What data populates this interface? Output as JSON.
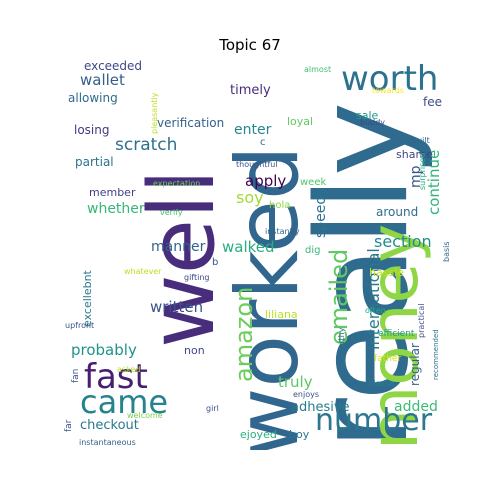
{
  "title": "Topic 67",
  "words": [
    {
      "text": "really",
      "color": "#2f6b8e"
    },
    {
      "text": "worked",
      "color": "#31668e"
    },
    {
      "text": "well",
      "color": "#472d7b"
    },
    {
      "text": "money",
      "color": "#8ed645"
    },
    {
      "text": "number",
      "color": "#2a778e"
    },
    {
      "text": "worth",
      "color": "#2c718e"
    },
    {
      "text": "fast",
      "color": "#481f70"
    },
    {
      "text": "came",
      "color": "#26828e"
    },
    {
      "text": "emailed",
      "color": "#5ec962"
    },
    {
      "text": "amazon",
      "color": "#6ccd5a"
    },
    {
      "text": "international",
      "color": "#2a788e"
    },
    {
      "text": "continue",
      "color": "#31b57b"
    },
    {
      "text": "scratch",
      "color": "#2d708e"
    },
    {
      "text": "section",
      "color": "#238a8d"
    },
    {
      "text": "speedy",
      "color": "#2c728e"
    },
    {
      "text": "manner",
      "color": "#33638d"
    },
    {
      "text": "walked",
      "color": "#29af7f"
    },
    {
      "text": "written",
      "color": "#3b518b"
    },
    {
      "text": "probably",
      "color": "#20928c"
    },
    {
      "text": "truly",
      "color": "#5ac864"
    },
    {
      "text": "adhesive",
      "color": "#287c8e"
    },
    {
      "text": "added",
      "color": "#3bbb75"
    },
    {
      "text": "checkout",
      "color": "#2a788e"
    },
    {
      "text": "wallet",
      "color": "#355e8d"
    },
    {
      "text": "whether",
      "color": "#35b779"
    },
    {
      "text": "apply",
      "color": "#440154"
    },
    {
      "text": "soy",
      "color": "#a2da37"
    },
    {
      "text": "enter",
      "color": "#24878e"
    },
    {
      "text": "exceeded",
      "color": "#3f4889"
    },
    {
      "text": "allowing",
      "color": "#2f6c8e"
    },
    {
      "text": "verification",
      "color": "#34618d"
    },
    {
      "text": "timely",
      "color": "#472c7a"
    },
    {
      "text": "losing",
      "color": "#453882"
    },
    {
      "text": "partial",
      "color": "#2c728e"
    },
    {
      "text": "loyal",
      "color": "#62cb5f"
    },
    {
      "text": "sale",
      "color": "#1e9c89"
    },
    {
      "text": "fee",
      "color": "#3d4e8a"
    },
    {
      "text": "mp",
      "color": "#39568c"
    },
    {
      "text": "shame",
      "color": "#414487"
    },
    {
      "text": "around",
      "color": "#2e6e8e"
    },
    {
      "text": "hola",
      "color": "#8ed645"
    },
    {
      "text": "week",
      "color": "#50c46a"
    },
    {
      "text": "member",
      "color": "#424086"
    },
    {
      "text": "dig",
      "color": "#35b779"
    },
    {
      "text": "hassle",
      "color": "#c8e020"
    },
    {
      "text": "liliana",
      "color": "#bddf26"
    },
    {
      "text": "excellebnt",
      "color": "#2a788e"
    },
    {
      "text": "ejoyed",
      "color": "#29af7f"
    },
    {
      "text": "boy",
      "color": "#2a768e"
    },
    {
      "text": "non",
      "color": "#3f4889"
    },
    {
      "text": "fan",
      "color": "#3a538b"
    },
    {
      "text": "regular",
      "color": "#355f8d"
    },
    {
      "text": "far",
      "color": "#3b528b"
    },
    {
      "text": "instantly",
      "color": "#31668e"
    },
    {
      "text": "gifting",
      "color": "#3f4788"
    },
    {
      "text": "verify",
      "color": "#4ac16d"
    },
    {
      "text": "expectation",
      "color": "#70cf57"
    },
    {
      "text": "whatever",
      "color": "#bddf26"
    },
    {
      "text": "upfront",
      "color": "#3b528b"
    },
    {
      "text": "asked",
      "color": "#b5de2b"
    },
    {
      "text": "welcome",
      "color": "#7ad151"
    },
    {
      "text": "instantaneous",
      "color": "#33638d"
    },
    {
      "text": "girl",
      "color": "#3d4e8a"
    },
    {
      "text": "enjoys",
      "color": "#3b528b"
    },
    {
      "text": "classic",
      "color": "#26828e"
    },
    {
      "text": "father",
      "color": "#d8e219"
    },
    {
      "text": "efficient",
      "color": "#1f9a8a"
    },
    {
      "text": "often",
      "color": "#22a884"
    },
    {
      "text": "recommended",
      "color": "#2c728e"
    },
    {
      "text": "practical",
      "color": "#3d4e8a"
    },
    {
      "text": "basis",
      "color": "#31678e"
    },
    {
      "text": "trustworthy",
      "color": "#2e6e8e"
    },
    {
      "text": "surprised",
      "color": "#26ad81"
    },
    {
      "text": "built",
      "color": "#31668e"
    },
    {
      "text": "buddy",
      "color": "#3f4788"
    },
    {
      "text": "towards",
      "color": "#fde725"
    },
    {
      "text": "almost",
      "color": "#3dbc74"
    },
    {
      "text": "pleasantly",
      "color": "#c0df25"
    },
    {
      "text": "thoughtful",
      "color": "#3b528b"
    },
    {
      "text": "c",
      "color": "#2c728e"
    },
    {
      "text": "b",
      "color": "#3b528b"
    }
  ]
}
